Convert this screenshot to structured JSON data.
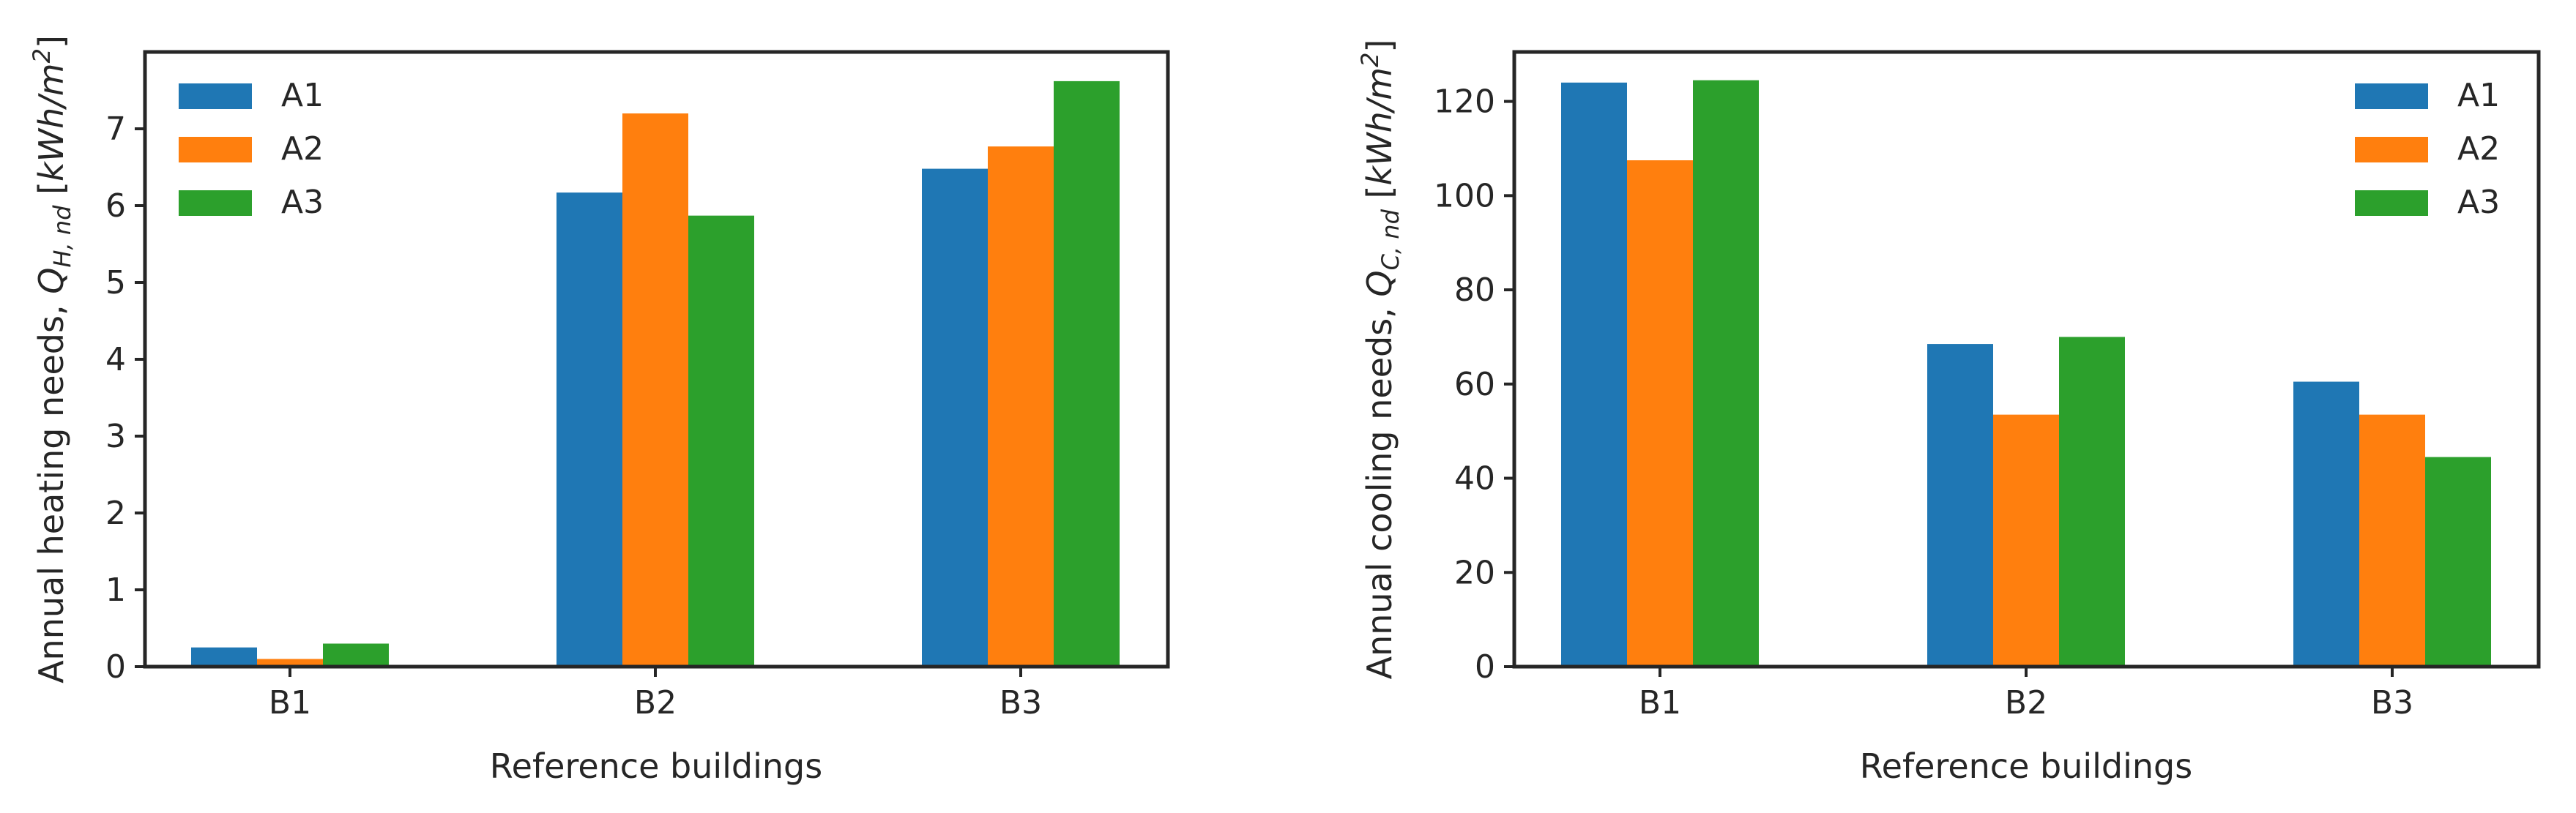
{
  "chart_data": [
    {
      "type": "bar",
      "id": "heating",
      "categories": [
        "B1",
        "B2",
        "B3"
      ],
      "series": [
        {
          "name": "A1",
          "color": "#1f77b4",
          "values": [
            0.25,
            6.17,
            6.48
          ]
        },
        {
          "name": "A2",
          "color": "#ff7f0e",
          "values": [
            0.1,
            7.2,
            6.77
          ]
        },
        {
          "name": "A3",
          "color": "#2ca02c",
          "values": [
            0.3,
            5.87,
            7.62
          ]
        }
      ],
      "title": "",
      "xlabel": "Reference buildings",
      "ylabel": {
        "prefix": "Annual heating needs, ",
        "symbol": "Q",
        "subscript": "H, nd",
        "unit_open": " [",
        "unit_main": "kWh/m",
        "unit_sup": "2",
        "unit_close": "]"
      },
      "ylim": [
        0,
        8.0
      ],
      "yticks": [
        0,
        1,
        2,
        3,
        4,
        5,
        6,
        7
      ],
      "legend_loc": "upper-left",
      "grid": false
    },
    {
      "type": "bar",
      "id": "cooling",
      "categories": [
        "B1",
        "B2",
        "B3"
      ],
      "series": [
        {
          "name": "A1",
          "color": "#1f77b4",
          "values": [
            124,
            68.5,
            60.5
          ]
        },
        {
          "name": "A2",
          "color": "#ff7f0e",
          "values": [
            107.5,
            53.5,
            53.5
          ]
        },
        {
          "name": "A3",
          "color": "#2ca02c",
          "values": [
            124.5,
            70,
            44.5
          ]
        }
      ],
      "title": "",
      "xlabel": "Reference buildings",
      "ylabel": {
        "prefix": "Annual cooling needs, ",
        "symbol": "Q",
        "subscript": "C, nd",
        "unit_open": " [",
        "unit_main": "kWh/m",
        "unit_sup": "2",
        "unit_close": "]"
      },
      "ylim": [
        0,
        130.5
      ],
      "yticks": [
        0,
        20,
        40,
        60,
        80,
        100,
        120
      ],
      "legend_loc": "upper-right",
      "grid": false
    }
  ]
}
